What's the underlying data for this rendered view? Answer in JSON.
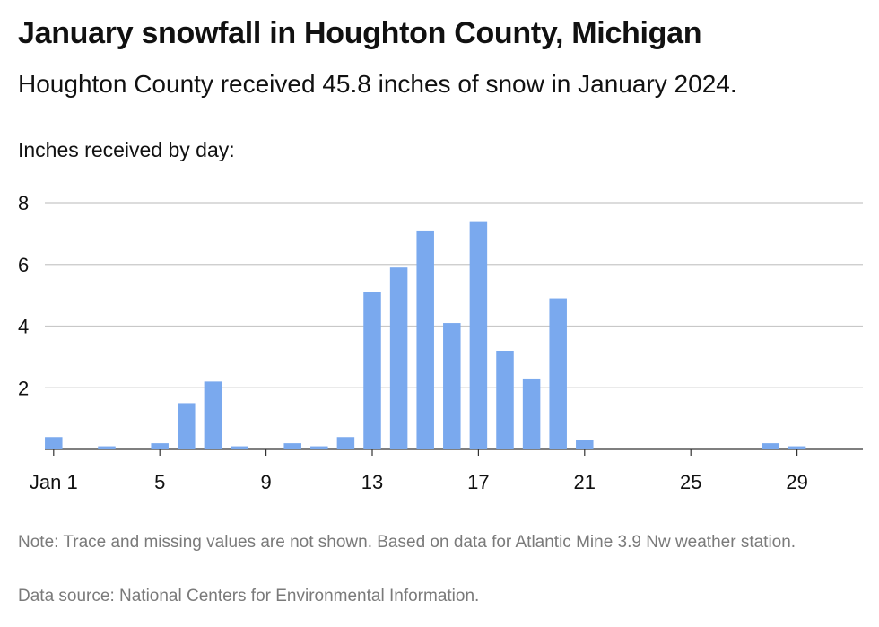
{
  "title": "January snowfall in Houghton County, Michigan",
  "subtitle": "Houghton County received 45.8 inches of snow in January 2024.",
  "lead": "Inches received by day:",
  "note": "Note: Trace and missing values are not shown. Based on data for Atlantic Mine 3.9 Nw weather station.",
  "source": "Data source: National Centers for Environmental Information.",
  "colors": {
    "bar": "#7aa9ee",
    "grid": "#c8c8c8",
    "axis": "#333333"
  },
  "chart_data": {
    "type": "bar",
    "ylabel": "Inches received by day:",
    "ylim": [
      0,
      8
    ],
    "yticks": [
      "8",
      "6",
      "4",
      "2"
    ],
    "xtick_labels": [
      "Jan 1",
      "5",
      "9",
      "13",
      "17",
      "21",
      "25",
      "29"
    ],
    "grid": true,
    "x": [
      1,
      2,
      3,
      4,
      5,
      6,
      7,
      8,
      9,
      10,
      11,
      12,
      13,
      14,
      15,
      16,
      17,
      18,
      19,
      20,
      21,
      22,
      23,
      24,
      25,
      26,
      27,
      28,
      29,
      30,
      31
    ],
    "values": [
      0.4,
      0,
      0.1,
      0,
      0.2,
      1.5,
      2.2,
      0.1,
      0,
      0.2,
      0.1,
      0.4,
      5.1,
      5.9,
      7.1,
      4.1,
      7.4,
      3.2,
      2.3,
      4.9,
      0.3,
      0,
      0,
      0,
      0,
      0,
      0,
      0.2,
      0.1,
      0,
      0
    ]
  }
}
